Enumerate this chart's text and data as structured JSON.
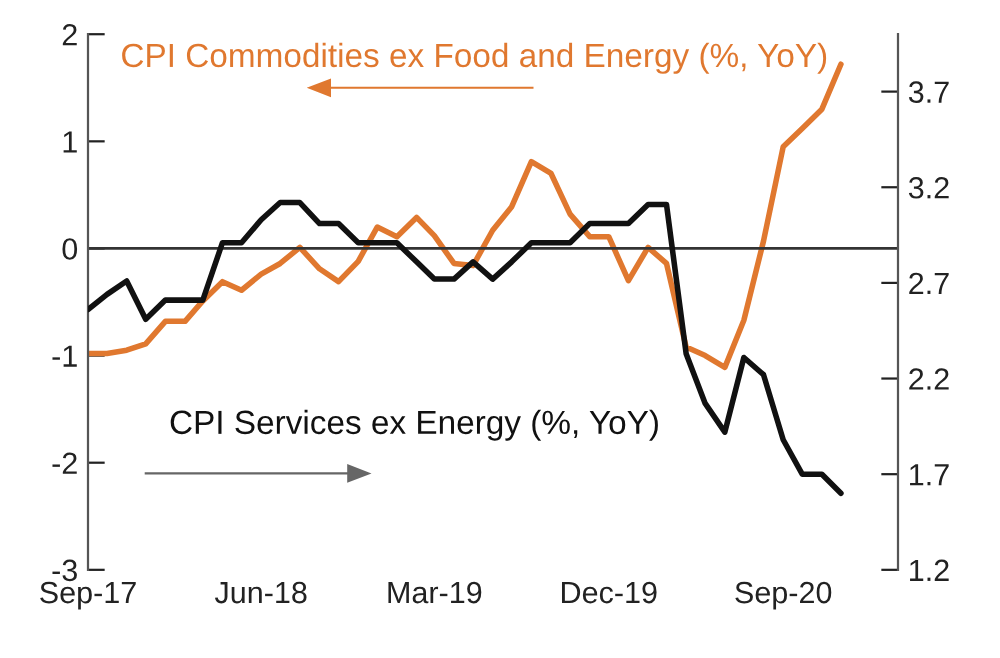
{
  "chart_data": {
    "type": "line",
    "x": [
      "2017-09",
      "2017-10",
      "2017-11",
      "2017-12",
      "2018-01",
      "2018-02",
      "2018-03",
      "2018-04",
      "2018-05",
      "2018-06",
      "2018-07",
      "2018-08",
      "2018-09",
      "2018-10",
      "2018-11",
      "2018-12",
      "2019-01",
      "2019-02",
      "2019-03",
      "2019-04",
      "2019-05",
      "2019-06",
      "2019-07",
      "2019-08",
      "2019-09",
      "2019-10",
      "2019-11",
      "2019-12",
      "2020-01",
      "2020-02",
      "2020-03",
      "2020-04",
      "2020-05",
      "2020-06",
      "2020-07",
      "2020-08",
      "2020-09",
      "2020-10",
      "2020-11",
      "2020-12"
    ],
    "series": [
      {
        "name": "CPI Commodities ex Food and Energy (%, YoY)",
        "color": "#e0782f",
        "axis": "y",
        "values": [
          -0.98,
          -0.98,
          -0.95,
          -0.89,
          -0.68,
          -0.68,
          -0.49,
          -0.31,
          -0.39,
          -0.24,
          -0.14,
          0.01,
          -0.19,
          -0.31,
          -0.12,
          0.2,
          0.11,
          0.29,
          0.12,
          -0.14,
          -0.16,
          0.17,
          0.39,
          0.81,
          0.7,
          0.32,
          0.11,
          0.11,
          -0.3,
          0.01,
          -0.14,
          -0.92,
          -1.0,
          -1.11,
          -0.67,
          0.07,
          0.95,
          1.12,
          1.3,
          1.72
        ]
      },
      {
        "name": "CPI Services ex Energy (%, YoY)",
        "color": "#111111",
        "axis": "y2",
        "values": [
          2.56,
          2.64,
          2.71,
          2.51,
          2.61,
          2.61,
          2.61,
          2.91,
          2.91,
          3.03,
          3.12,
          3.12,
          3.01,
          3.01,
          2.91,
          2.91,
          2.91,
          2.81,
          2.72,
          2.72,
          2.81,
          2.72,
          2.81,
          2.91,
          2.91,
          2.91,
          3.01,
          3.01,
          3.01,
          3.11,
          3.11,
          2.33,
          2.07,
          1.92,
          2.31,
          2.22,
          1.88,
          1.7,
          1.7,
          1.6
        ]
      }
    ],
    "xlim": [
      "2017-09",
      "2021-03"
    ],
    "xticks": [
      {
        "value": "2017-09",
        "label": "Sep-17"
      },
      {
        "value": "2018-06",
        "label": "Jun-18"
      },
      {
        "value": "2019-03",
        "label": "Mar-19"
      },
      {
        "value": "2019-12",
        "label": "Dec-19"
      },
      {
        "value": "2020-09",
        "label": "Sep-20"
      }
    ],
    "ylim": [
      -3,
      2
    ],
    "yticks": [
      -3,
      -2,
      -1,
      0,
      1,
      2
    ],
    "y2lim": [
      1.2,
      4.0
    ],
    "y2ticks": [
      1.2,
      1.7,
      2.2,
      2.7,
      3.2,
      3.7
    ],
    "ref_lines": [
      {
        "axis": "y",
        "value": 0,
        "color": "#333333",
        "line_style": "solid"
      }
    ],
    "grid": false,
    "legend": false,
    "marker": "none",
    "line_style": "solid"
  }
}
